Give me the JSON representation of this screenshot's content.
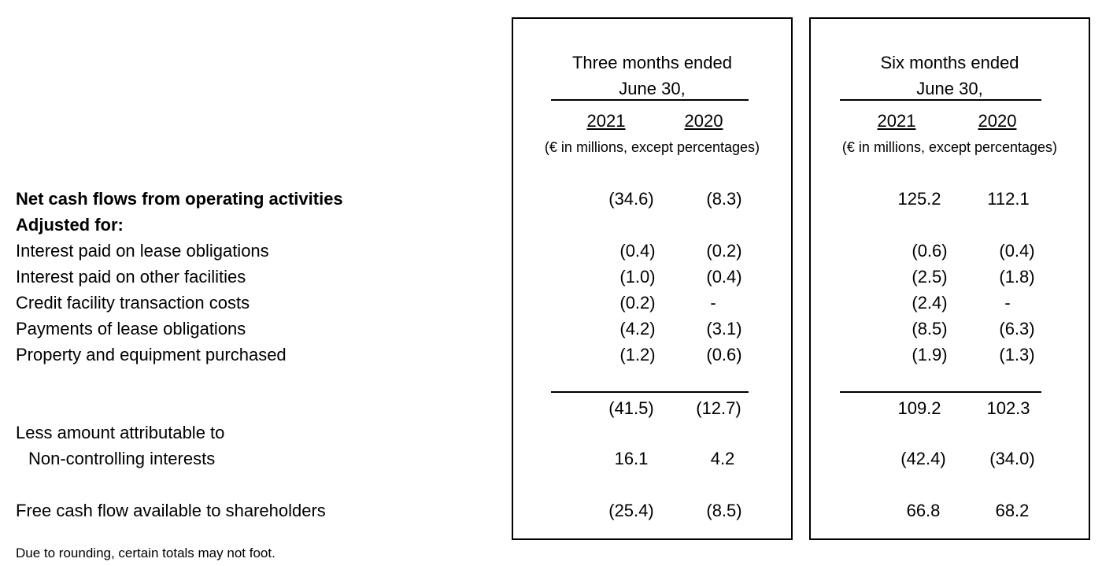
{
  "column_groups": [
    {
      "title_line1": "Three months ended",
      "title_line2": "June 30,",
      "year_a": "2021",
      "year_b": "2020",
      "units": "(€ in millions, except percentages)"
    },
    {
      "title_line1": "Six months ended",
      "title_line2": "June 30,",
      "year_a": "2021",
      "year_b": "2020",
      "units": "(€ in millions, except percentages)"
    }
  ],
  "rows": [
    {
      "label": "Net cash flows from operating activities",
      "bold": true,
      "q21": "(34.6)",
      "q20": "(8.3)",
      "h21": "125.2",
      "h20": "112.1"
    },
    {
      "label": "Adjusted for:",
      "bold": true,
      "q21": "",
      "q20": "",
      "h21": "",
      "h20": ""
    },
    {
      "label": "Interest paid on lease obligations",
      "bold": false,
      "q21": "(0.4)",
      "q20": "(0.2)",
      "h21": "(0.6)",
      "h20": "(0.4)"
    },
    {
      "label": "Interest paid on other facilities",
      "bold": false,
      "q21": "(1.0)",
      "q20": "(0.4)",
      "h21": "(2.5)",
      "h20": "(1.8)"
    },
    {
      "label": "Credit facility transaction costs",
      "bold": false,
      "q21": "(0.2)",
      "q20": "-",
      "h21": "(2.4)",
      "h20": "-"
    },
    {
      "label": "Payments of lease obligations",
      "bold": false,
      "q21": "(4.2)",
      "q20": "(3.1)",
      "h21": "(8.5)",
      "h20": "(6.3)"
    },
    {
      "label": "Property and equipment purchased",
      "bold": false,
      "q21": "(1.2)",
      "q20": "(0.6)",
      "h21": "(1.9)",
      "h20": "(1.3)"
    }
  ],
  "subtotal": {
    "q21": "(41.5)",
    "q20": "(12.7)",
    "h21": "109.2",
    "h20": "102.3"
  },
  "nci": {
    "label_line1": "Less amount attributable to",
    "label_line2": "Non-controlling interests",
    "q21": "16.1",
    "q20": "4.2",
    "h21": "(42.4)",
    "h20": "(34.0)"
  },
  "fcf": {
    "label": "Free cash flow available to shareholders",
    "q21": "(25.4)",
    "q20": "(8.5)",
    "h21": "66.8",
    "h20": "68.2"
  },
  "footnote": "Due to rounding, certain totals may not foot."
}
